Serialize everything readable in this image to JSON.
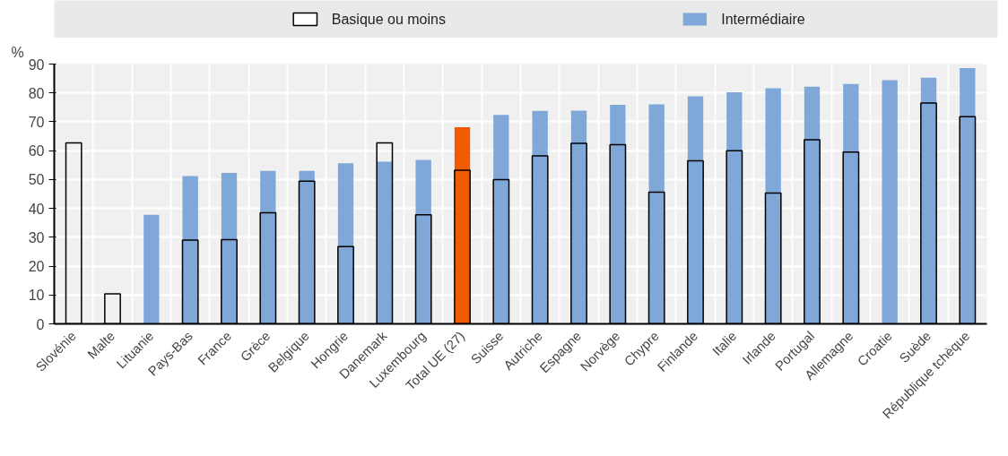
{
  "chart_data": {
    "type": "bar",
    "ylabel": "%",
    "categories": [
      "Slovénie",
      "Malte",
      "Lituanie",
      "Pays-Bas",
      "France",
      "Grèce",
      "Belgique",
      "Hongrie",
      "Danemark",
      "Luxembourg",
      "Total UE (27)",
      "Suisse",
      "Autriche",
      "Espagne",
      "Norvège",
      "Chypre",
      "Finlande",
      "Italie",
      "Irlande",
      "Portugal",
      "Allemagne",
      "Croatie",
      "Suède",
      "République tchèque"
    ],
    "series": [
      {
        "name": "Intermédiaire",
        "color": "#7fa8d8",
        "colors": [
          "#7fa8d8",
          "#7fa8d8",
          "#7fa8d8",
          "#7fa8d8",
          "#7fa8d8",
          "#7fa8d8",
          "#7fa8d8",
          "#7fa8d8",
          "#7fa8d8",
          "#7fa8d8",
          "#f05a00",
          "#7fa8d8",
          "#7fa8d8",
          "#7fa8d8",
          "#7fa8d8",
          "#7fa8d8",
          "#7fa8d8",
          "#7fa8d8",
          "#7fa8d8",
          "#7fa8d8",
          "#7fa8d8",
          "#7fa8d8",
          "#7fa8d8",
          "#7fa8d8"
        ],
        "values": [
          null,
          null,
          37.8,
          51.2,
          52.3,
          53,
          53,
          55.6,
          56.2,
          56.8,
          68.1,
          72.4,
          73.8,
          73.9,
          75.9,
          76,
          78.8,
          80.2,
          81.6,
          82.2,
          83.1,
          84.4,
          85.3,
          88.6
        ]
      },
      {
        "name": "Basique ou moins",
        "color": "#000000",
        "values": [
          62.7,
          10.4,
          null,
          29,
          29.2,
          38.5,
          49.4,
          26.8,
          62.7,
          37.8,
          53.2,
          50,
          58.2,
          62.5,
          62.1,
          45.6,
          56.5,
          60,
          45.3,
          63.8,
          59.5,
          null,
          76.5,
          71.8
        ]
      }
    ],
    "ylim": [
      0,
      90
    ],
    "yticks": [
      0,
      10,
      20,
      30,
      40,
      50,
      60,
      70,
      80,
      90
    ],
    "grid": true,
    "legend": "top"
  }
}
